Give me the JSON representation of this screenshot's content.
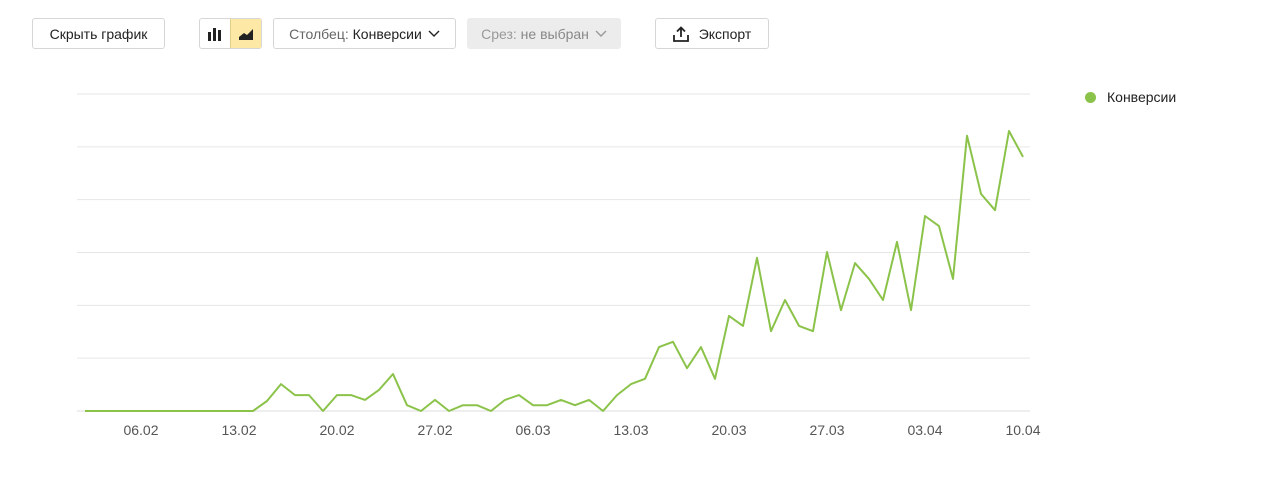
{
  "toolbar": {
    "hide_chart_label": "Скрыть график",
    "chart_types": [
      {
        "icon": "bar-chart-icon",
        "active": false
      },
      {
        "icon": "area-chart-icon",
        "active": true
      }
    ],
    "column_key": "Столбец:",
    "column_value": "Конверсии",
    "slice_key": "Срез:",
    "slice_value": "не выбран",
    "export_label": "Экспорт"
  },
  "chart_data": {
    "type": "line",
    "title": "",
    "xlabel": "",
    "ylabel": "",
    "ylim": [
      0,
      6
    ],
    "grid": true,
    "y_tick_labels_shown": false,
    "legend_position": "top-right",
    "x_tick_labels": [
      "06.02",
      "13.02",
      "20.02",
      "27.02",
      "06.03",
      "13.03",
      "20.03",
      "27.03",
      "03.04",
      "10.04"
    ],
    "x": [
      "02.02",
      "03.02",
      "04.02",
      "05.02",
      "06.02",
      "07.02",
      "08.02",
      "09.02",
      "10.02",
      "11.02",
      "12.02",
      "13.02",
      "14.02",
      "15.02",
      "16.02",
      "17.02",
      "18.02",
      "19.02",
      "20.02",
      "21.02",
      "22.02",
      "23.02",
      "24.02",
      "25.02",
      "26.02",
      "27.02",
      "28.02",
      "01.03",
      "02.03",
      "03.03",
      "04.03",
      "05.03",
      "06.03",
      "07.03",
      "08.03",
      "09.03",
      "10.03",
      "11.03",
      "12.03",
      "13.03",
      "14.03",
      "15.03",
      "16.03",
      "17.03",
      "18.03",
      "19.03",
      "20.03",
      "21.03",
      "22.03",
      "23.03",
      "24.03",
      "25.03",
      "26.03",
      "27.03",
      "28.03",
      "29.03",
      "30.03",
      "31.03",
      "01.04",
      "02.04",
      "03.04",
      "04.04",
      "05.04",
      "06.04",
      "07.04",
      "08.04",
      "09.04",
      "10.04"
    ],
    "series": [
      {
        "name": "Конверсии",
        "color": "#8bc34a",
        "values": [
          0,
          0,
          0,
          0,
          0,
          0,
          0,
          0,
          0,
          0,
          0,
          0,
          0,
          0.19,
          0.51,
          0.3,
          0.3,
          0,
          0.3,
          0.3,
          0.21,
          0.4,
          0.7,
          0.11,
          0,
          0.21,
          0,
          0.11,
          0.11,
          0,
          0.21,
          0.3,
          0.11,
          0.11,
          0.21,
          0.11,
          0.21,
          0,
          0.3,
          0.51,
          0.61,
          1.21,
          1.31,
          0.81,
          1.21,
          0.61,
          1.8,
          1.61,
          2.9,
          1.51,
          2.1,
          1.61,
          1.51,
          3.01,
          1.91,
          2.8,
          2.5,
          2.1,
          3.2,
          1.91,
          3.69,
          3.5,
          2.5,
          5.21,
          4.11,
          3.8,
          5.3,
          4.81
        ]
      }
    ]
  }
}
